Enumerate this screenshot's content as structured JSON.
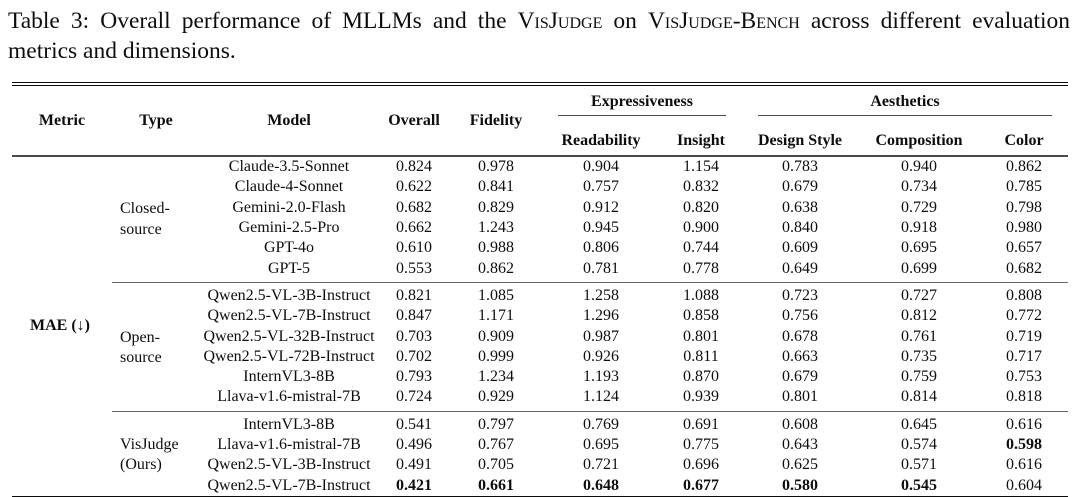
{
  "caption": {
    "prefix": "Table 3: Overall performance of MLLMs and the ",
    "visjudge": "VisJudge",
    "middle": " on ",
    "bench": "VisJudge-Bench",
    "suffix": " across different evaluation metrics and dimensions."
  },
  "table": {
    "metric_label": "MAE (↓)",
    "columns": {
      "metric": "Metric",
      "type": "Type",
      "model": "Model",
      "overall": "Overall",
      "fidelity": "Fidelity",
      "expressiveness": "Expressiveness",
      "aesthetics": "Aesthetics",
      "readability": "Readability",
      "insight": "Insight",
      "design_style": "Design Style",
      "composition": "Composition",
      "color": "Color"
    },
    "groups": [
      {
        "type": "Closed-\nsource",
        "rows": [
          {
            "model": "Claude-3.5-Sonnet",
            "values": [
              "0.824",
              "0.978",
              "0.904",
              "1.154",
              "0.783",
              "0.940",
              "0.862"
            ],
            "bold": []
          },
          {
            "model": "Claude-4-Sonnet",
            "values": [
              "0.622",
              "0.841",
              "0.757",
              "0.832",
              "0.679",
              "0.734",
              "0.785"
            ],
            "bold": []
          },
          {
            "model": "Gemini-2.0-Flash",
            "values": [
              "0.682",
              "0.829",
              "0.912",
              "0.820",
              "0.638",
              "0.729",
              "0.798"
            ],
            "bold": []
          },
          {
            "model": "Gemini-2.5-Pro",
            "values": [
              "0.662",
              "1.243",
              "0.945",
              "0.900",
              "0.840",
              "0.918",
              "0.980"
            ],
            "bold": []
          },
          {
            "model": "GPT-4o",
            "values": [
              "0.610",
              "0.988",
              "0.806",
              "0.744",
              "0.609",
              "0.695",
              "0.657"
            ],
            "bold": []
          },
          {
            "model": "GPT-5",
            "values": [
              "0.553",
              "0.862",
              "0.781",
              "0.778",
              "0.649",
              "0.699",
              "0.682"
            ],
            "bold": []
          }
        ]
      },
      {
        "type": "Open-\nsource",
        "rows": [
          {
            "model": "Qwen2.5-VL-3B-Instruct",
            "values": [
              "0.821",
              "1.085",
              "1.258",
              "1.088",
              "0.723",
              "0.727",
              "0.808"
            ],
            "bold": []
          },
          {
            "model": "Qwen2.5-VL-7B-Instruct",
            "values": [
              "0.847",
              "1.171",
              "1.296",
              "0.858",
              "0.756",
              "0.812",
              "0.772"
            ],
            "bold": []
          },
          {
            "model": "Qwen2.5-VL-32B-Instruct",
            "values": [
              "0.703",
              "0.909",
              "0.987",
              "0.801",
              "0.678",
              "0.761",
              "0.719"
            ],
            "bold": []
          },
          {
            "model": "Qwen2.5-VL-72B-Instruct",
            "values": [
              "0.702",
              "0.999",
              "0.926",
              "0.811",
              "0.663",
              "0.735",
              "0.717"
            ],
            "bold": []
          },
          {
            "model": "InternVL3-8B",
            "values": [
              "0.793",
              "1.234",
              "1.193",
              "0.870",
              "0.679",
              "0.759",
              "0.753"
            ],
            "bold": []
          },
          {
            "model": "Llava-v1.6-mistral-7B",
            "values": [
              "0.724",
              "0.929",
              "1.124",
              "0.939",
              "0.801",
              "0.814",
              "0.818"
            ],
            "bold": []
          }
        ]
      },
      {
        "type": "VisJudge\n(Ours)",
        "rows": [
          {
            "model": "InternVL3-8B",
            "values": [
              "0.541",
              "0.797",
              "0.769",
              "0.691",
              "0.608",
              "0.645",
              "0.616"
            ],
            "bold": []
          },
          {
            "model": "Llava-v1.6-mistral-7B",
            "values": [
              "0.496",
              "0.767",
              "0.695",
              "0.775",
              "0.643",
              "0.574",
              "0.598"
            ],
            "bold": [
              6
            ]
          },
          {
            "model": "Qwen2.5-VL-3B-Instruct",
            "values": [
              "0.491",
              "0.705",
              "0.721",
              "0.696",
              "0.625",
              "0.571",
              "0.616"
            ],
            "bold": []
          },
          {
            "model": "Qwen2.5-VL-7B-Instruct",
            "values": [
              "0.421",
              "0.661",
              "0.648",
              "0.677",
              "0.580",
              "0.545",
              "0.604"
            ],
            "bold": [
              0,
              1,
              2,
              3,
              4,
              5
            ]
          }
        ]
      }
    ]
  }
}
